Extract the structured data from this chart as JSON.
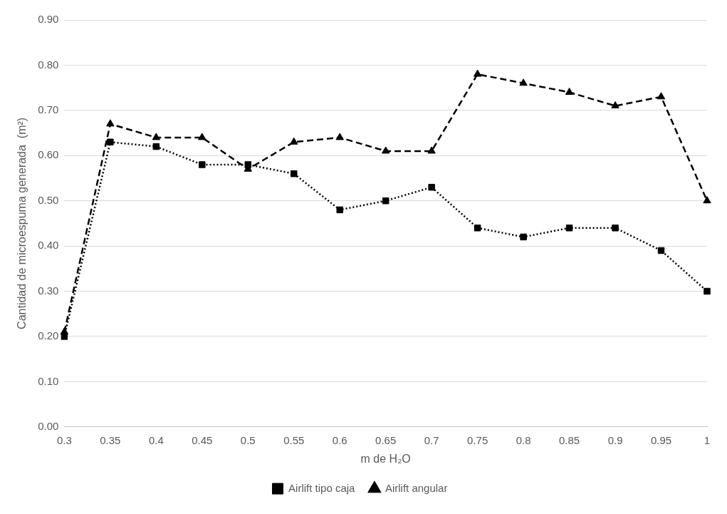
{
  "chart_data": {
    "type": "line",
    "xlabel": "m de H₂O",
    "ylabel": "Cantidad de microespuma generada  (m²)",
    "categories": [
      "0.3",
      "0.35",
      "0.4",
      "0.45",
      "0.5",
      "0.55",
      "0.6",
      "0.65",
      "0.7",
      "0.75",
      "0.8",
      "0.85",
      "0.9",
      "0.95",
      "1"
    ],
    "series": [
      {
        "name": "Airlift tipo caja",
        "color": "#000000",
        "marker": "square",
        "line_style": "dotted",
        "values": [
          0.2,
          0.63,
          0.62,
          0.58,
          0.58,
          0.56,
          0.48,
          0.5,
          0.53,
          0.44,
          0.42,
          0.44,
          0.44,
          0.39,
          0.3
        ]
      },
      {
        "name": "Airlift angular",
        "color": "#000000",
        "marker": "triangle",
        "line_style": "dashed",
        "values": [
          0.21,
          0.67,
          0.64,
          0.64,
          0.57,
          0.63,
          0.64,
          0.61,
          0.61,
          0.78,
          0.76,
          0.74,
          0.71,
          0.73,
          0.5
        ]
      }
    ],
    "ylim": [
      0,
      0.9
    ],
    "yticks": [
      {
        "value": 0,
        "label": "0.00"
      },
      {
        "value": 0.1,
        "label": "0.10"
      },
      {
        "value": 0.2,
        "label": "0.20"
      },
      {
        "value": 0.3,
        "label": "0.30"
      },
      {
        "value": 0.4,
        "label": "0.40"
      },
      {
        "value": 0.5,
        "label": "0.50"
      },
      {
        "value": 0.6,
        "label": "0.60"
      },
      {
        "value": 0.7,
        "label": "0.70"
      },
      {
        "value": 0.8,
        "label": "0.80"
      },
      {
        "value": 0.9,
        "label": "0.90"
      }
    ],
    "grid": "y",
    "legend": "bottom"
  }
}
